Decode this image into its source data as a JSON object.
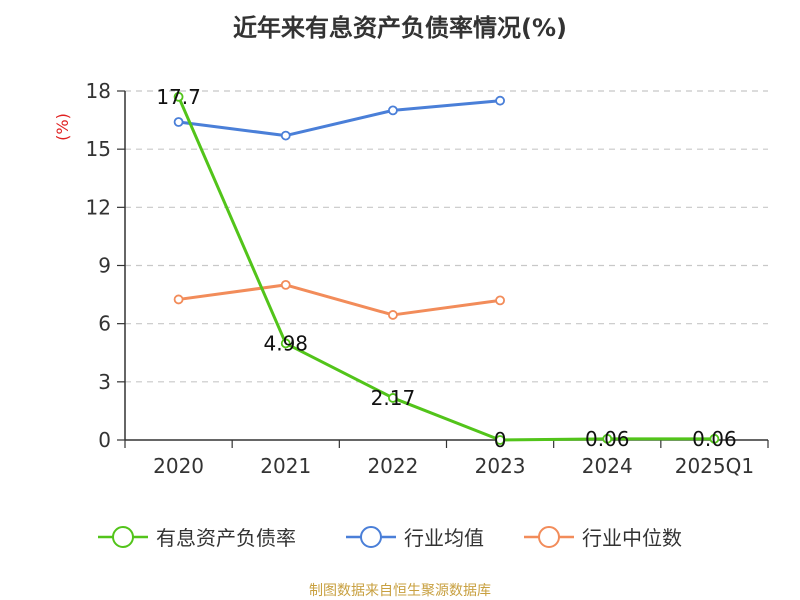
{
  "title": "近年来有息资产负债率情况(%)",
  "source": "制图数据来自恒生聚源数据库",
  "chart_data": {
    "type": "line",
    "title": "近年来有息资产负债率情况(%)",
    "ylabel": "(%)",
    "xlabel": "",
    "categories": [
      "2020",
      "2021",
      "2022",
      "2023",
      "2024",
      "2025Q1"
    ],
    "ylim": [
      0,
      18
    ],
    "yticks": [
      0,
      3,
      6,
      9,
      12,
      15,
      18
    ],
    "grid": true,
    "legend_position": "bottom",
    "series": [
      {
        "name": "有息资产负债率",
        "color": "#52c41a",
        "values": [
          17.7,
          4.98,
          2.17,
          0,
          0.06,
          0.06
        ],
        "labels": [
          "17.7",
          "4.98",
          "2.17",
          "0",
          "0.06",
          "0.06"
        ]
      },
      {
        "name": "行业均值",
        "color": "#4a7fd8",
        "values": [
          16.4,
          15.7,
          17.0,
          17.5,
          null,
          null
        ]
      },
      {
        "name": "行业中位数",
        "color": "#f28c5a",
        "values": [
          7.25,
          8.0,
          6.45,
          7.2,
          null,
          null
        ]
      }
    ]
  }
}
